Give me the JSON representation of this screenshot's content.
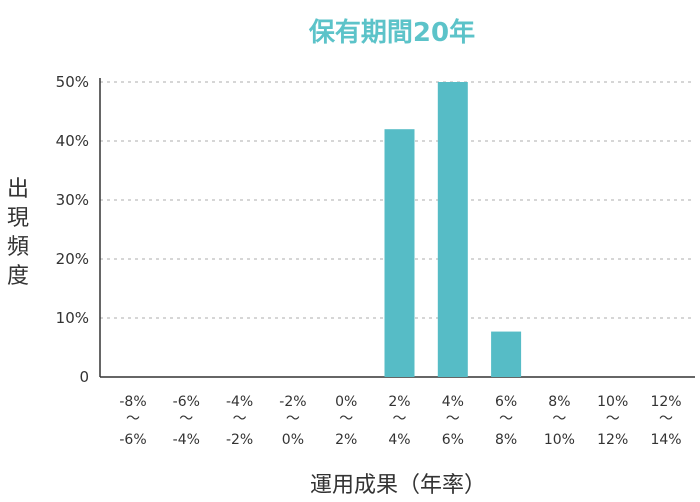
{
  "chart_data": {
    "type": "bar",
    "title": "保有期間20年",
    "ylabel": "出現頻度",
    "xlabel": "運用成果（年率）",
    "categories": [
      [
        "-8%",
        "〜",
        "-6%"
      ],
      [
        "-6%",
        "〜",
        "-4%"
      ],
      [
        "-4%",
        "〜",
        "-2%"
      ],
      [
        "-2%",
        "〜",
        "0%"
      ],
      [
        "0%",
        "〜",
        "2%"
      ],
      [
        "2%",
        "〜",
        "4%"
      ],
      [
        "4%",
        "〜",
        "6%"
      ],
      [
        "6%",
        "〜",
        "8%"
      ],
      [
        "8%",
        "〜",
        "10%"
      ],
      [
        "10%",
        "〜",
        "12%"
      ],
      [
        "12%",
        "〜",
        "14%"
      ]
    ],
    "values": [
      0,
      0,
      0,
      0,
      0,
      42,
      50,
      7.7,
      0,
      0,
      0
    ],
    "yticks": [
      "0",
      "10%",
      "20%",
      "30%",
      "40%",
      "50%"
    ],
    "ylim": [
      0,
      50
    ],
    "grid": true,
    "bar_color": "#56bcc6",
    "title_color": "#5cc3c9"
  }
}
